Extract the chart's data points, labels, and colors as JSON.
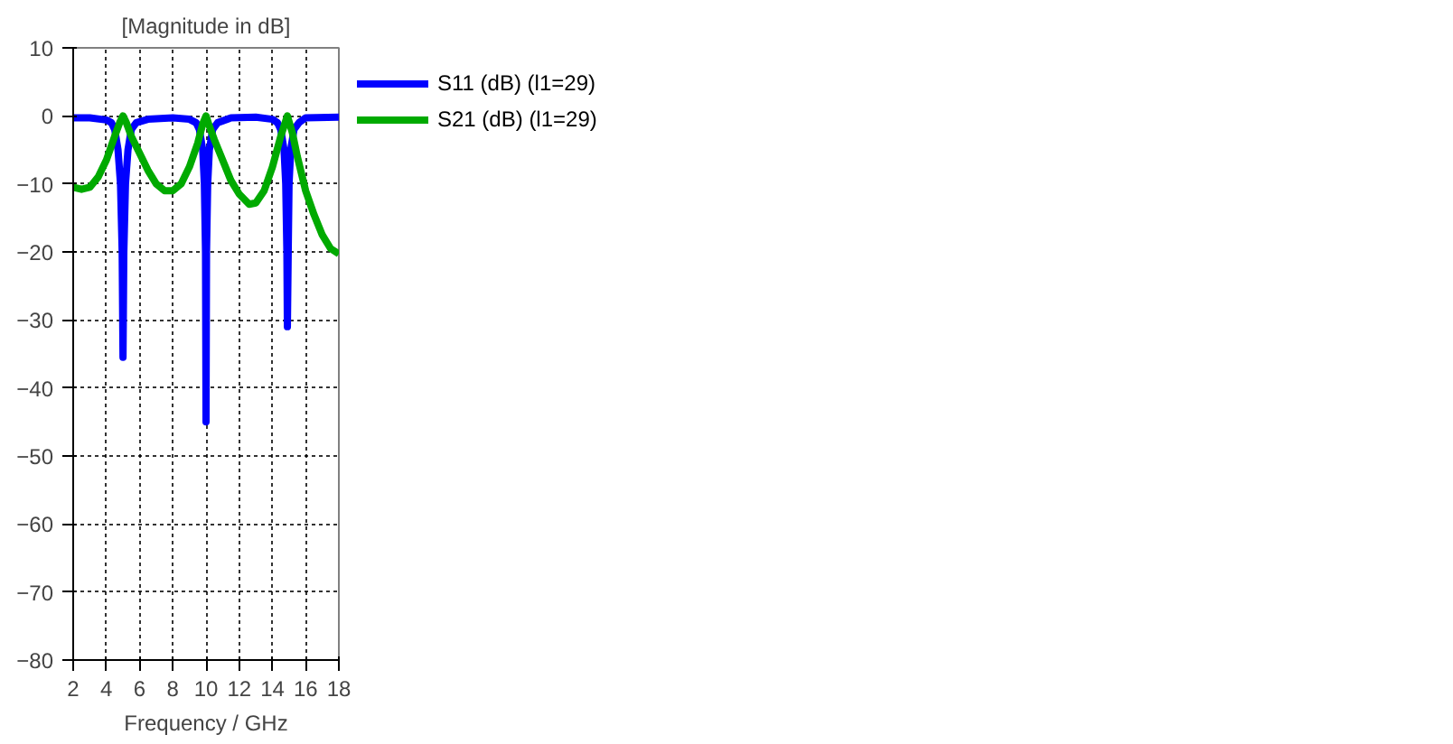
{
  "chart_data": {
    "type": "line",
    "title": "[Magnitude in dB]",
    "xlabel": "Frequency / GHz",
    "xlim": [
      2,
      18
    ],
    "xticks": [
      2,
      4,
      6,
      8,
      10,
      12,
      14,
      16,
      18
    ],
    "ylim": [
      -80,
      10
    ],
    "yticks": [
      -80,
      -70,
      -60,
      -50,
      -40,
      -30,
      -20,
      -10,
      0,
      10
    ],
    "grid": true,
    "legend": "top right",
    "line_style": "solid",
    "marker": "none",
    "series": [
      {
        "name": "S11 (dB) (l1=29)",
        "color": "#0000ff",
        "x": [
          2,
          3,
          4,
          4.3,
          4.5,
          4.7,
          4.85,
          4.95,
          5.0,
          5.05,
          5.15,
          5.3,
          5.5,
          5.8,
          6.5,
          8,
          9,
          9.4,
          9.6,
          9.8,
          9.9,
          9.97,
          10.0,
          10.03,
          10.1,
          10.2,
          10.4,
          10.7,
          11.5,
          13,
          14,
          14.3,
          14.5,
          14.7,
          14.8,
          14.87,
          14.9,
          14.95,
          15.0,
          15.1,
          15.3,
          15.6,
          16,
          18
        ],
        "values": [
          -0.3,
          -0.3,
          -0.6,
          -1,
          -2,
          -5,
          -10,
          -20,
          -35.5,
          -20,
          -10,
          -5,
          -2,
          -1,
          -0.5,
          -0.3,
          -0.5,
          -1,
          -2,
          -5,
          -10,
          -20,
          -45,
          -20,
          -10,
          -5,
          -2,
          -1,
          -0.3,
          -0.2,
          -0.5,
          -1,
          -2,
          -5,
          -10,
          -20,
          -31,
          -20,
          -10,
          -5,
          -2,
          -1,
          -0.3,
          -0.2
        ]
      },
      {
        "name": "S21 (dB) (l1=29)",
        "color": "#00aa00",
        "x": [
          2,
          2.5,
          3,
          3.5,
          4,
          4.5,
          4.8,
          5.0,
          5.2,
          5.5,
          6,
          6.5,
          7,
          7.5,
          8,
          8.5,
          9,
          9.5,
          9.8,
          10,
          10.2,
          10.5,
          11,
          11.5,
          12,
          12.6,
          13,
          13.5,
          14,
          14.5,
          14.9,
          15.2,
          15.5,
          16,
          16.5,
          17,
          17.5,
          18
        ],
        "values": [
          -10.5,
          -10.8,
          -10.5,
          -9,
          -6.5,
          -3,
          -1,
          0,
          -1,
          -3,
          -5.5,
          -8,
          -10,
          -11,
          -11,
          -10,
          -7.5,
          -4,
          -1.2,
          0,
          -1.5,
          -3.5,
          -6.5,
          -9.5,
          -11.5,
          -13,
          -12.8,
          -11,
          -7.5,
          -3,
          0,
          -2.5,
          -6,
          -11,
          -14.5,
          -17.5,
          -19.5,
          -20.3
        ]
      }
    ]
  }
}
